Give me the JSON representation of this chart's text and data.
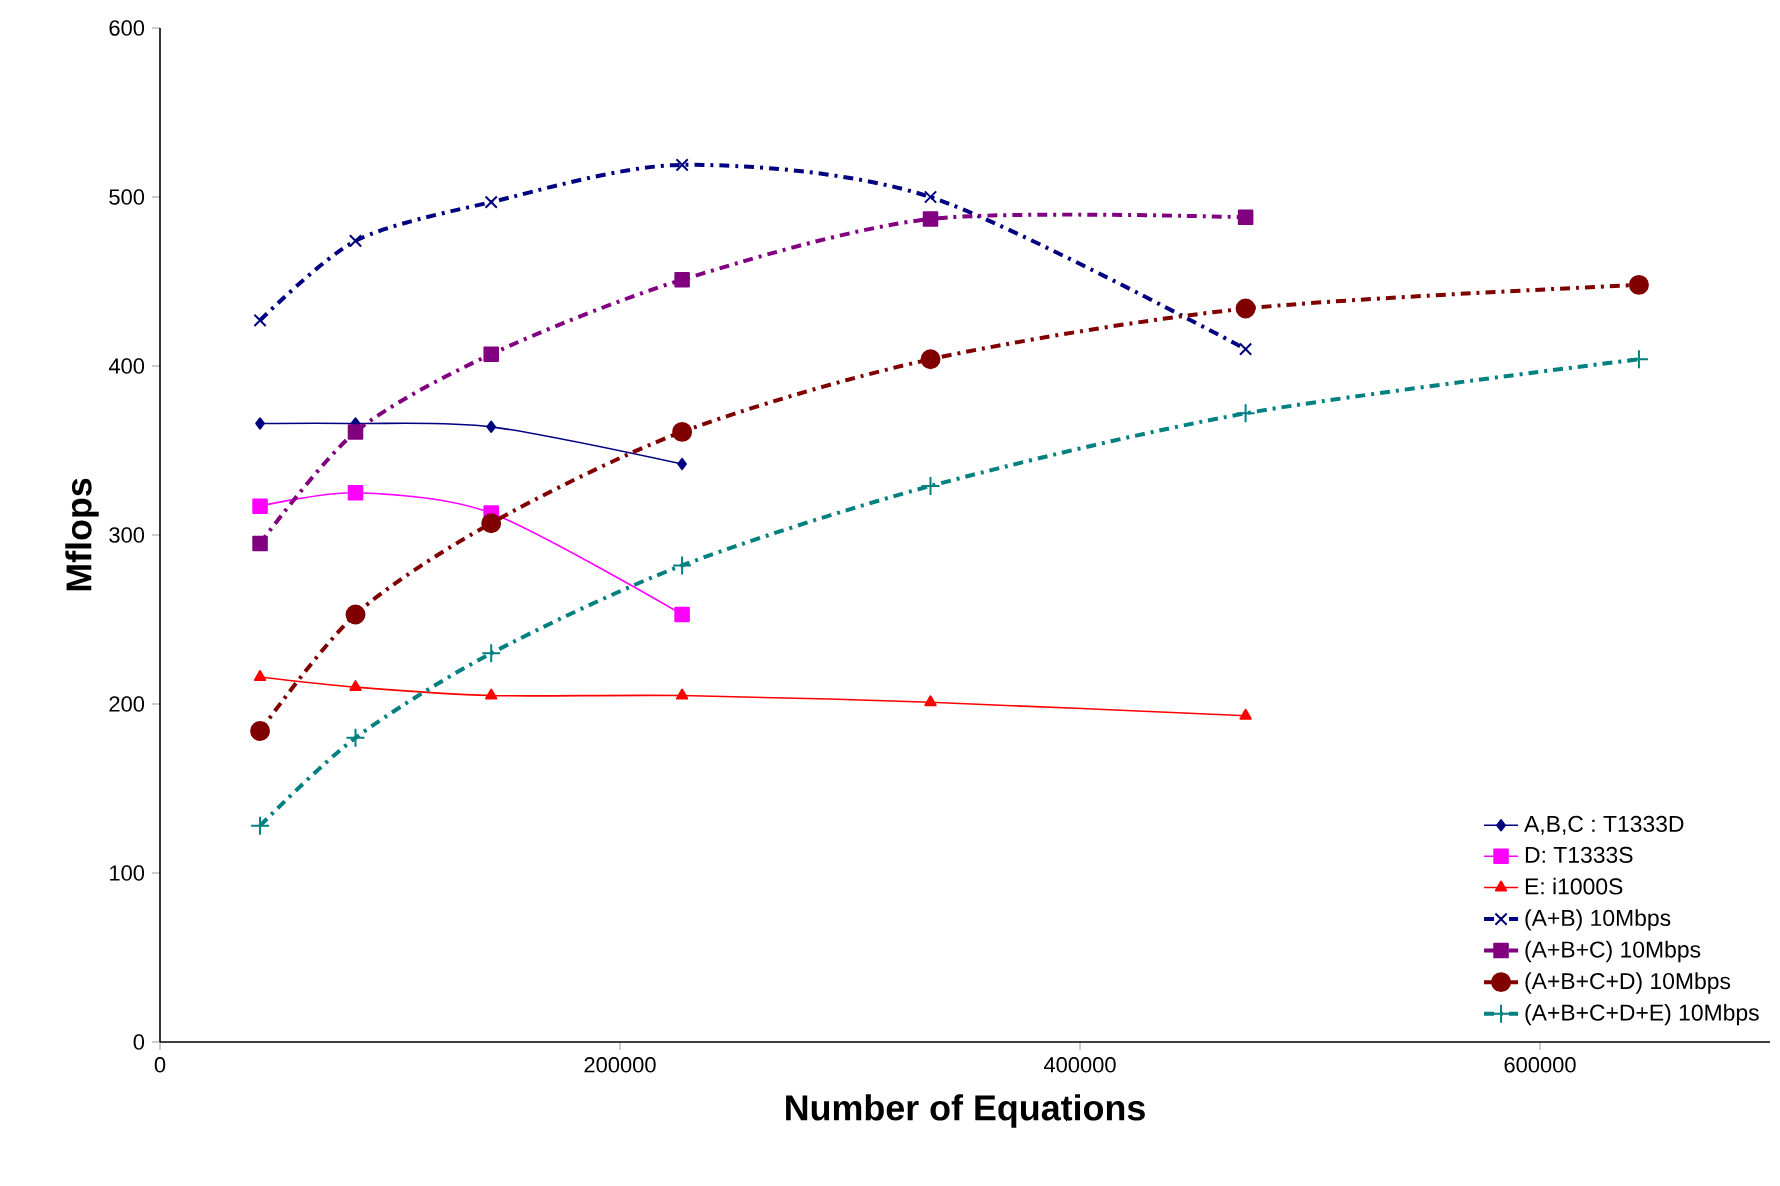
{
  "chart_data": {
    "type": "line",
    "xlabel": "Number of Equations",
    "ylabel": "Mflops",
    "xlim": [
      0,
      700000
    ],
    "ylim": [
      0,
      600
    ],
    "xticks": [
      0,
      200000,
      400000,
      600000
    ],
    "yticks": [
      0,
      100,
      200,
      300,
      400,
      500,
      600
    ],
    "grid": false,
    "legend": "bottom right",
    "series": [
      {
        "name": "A,B,C :  T1333D",
        "color": "#000080",
        "marker": "diamond",
        "line_style": "solid",
        "x": [
          43500,
          85000,
          144000,
          227000
        ],
        "values": [
          366,
          366,
          364,
          342
        ]
      },
      {
        "name": "D: T1333S",
        "color": "#ff00ff",
        "marker": "square",
        "line_style": "solid",
        "x": [
          43500,
          85000,
          144000,
          227000
        ],
        "values": [
          317,
          325,
          313,
          253
        ]
      },
      {
        "name": "E: i1000S",
        "color": "#ff0000",
        "marker": "triangle",
        "line_style": "solid",
        "x": [
          43500,
          85000,
          144000,
          227000,
          335000,
          472000
        ],
        "values": [
          216,
          210,
          205,
          205,
          201,
          193
        ]
      },
      {
        "name": "(A+B) 10Mbps",
        "color": "#000080",
        "marker": "cross",
        "line_style": "dashed",
        "x": [
          43500,
          85000,
          144000,
          227000,
          335000,
          472000
        ],
        "values": [
          427,
          474,
          497,
          519,
          500,
          410
        ]
      },
      {
        "name": "(A+B+C) 10Mbps",
        "color": "#800080",
        "marker": "square",
        "line_style": "dashed",
        "x": [
          43500,
          85000,
          144000,
          227000,
          335000,
          472000
        ],
        "values": [
          295,
          361,
          407,
          451,
          487,
          488
        ]
      },
      {
        "name": "(A+B+C+D) 10Mbps",
        "color": "#800000",
        "marker": "circle",
        "line_style": "dashed",
        "x": [
          43500,
          85000,
          144000,
          227000,
          335000,
          472000,
          643000
        ],
        "values": [
          184,
          253,
          307,
          361,
          404,
          434,
          448
        ]
      },
      {
        "name": "(A+B+C+D+E) 10Mbps",
        "color": "#008080",
        "marker": "plus",
        "line_style": "dashed",
        "x": [
          43500,
          85000,
          144000,
          227000,
          335000,
          472000,
          643000
        ],
        "values": [
          128,
          180,
          230,
          282,
          329,
          372,
          404
        ]
      }
    ]
  }
}
